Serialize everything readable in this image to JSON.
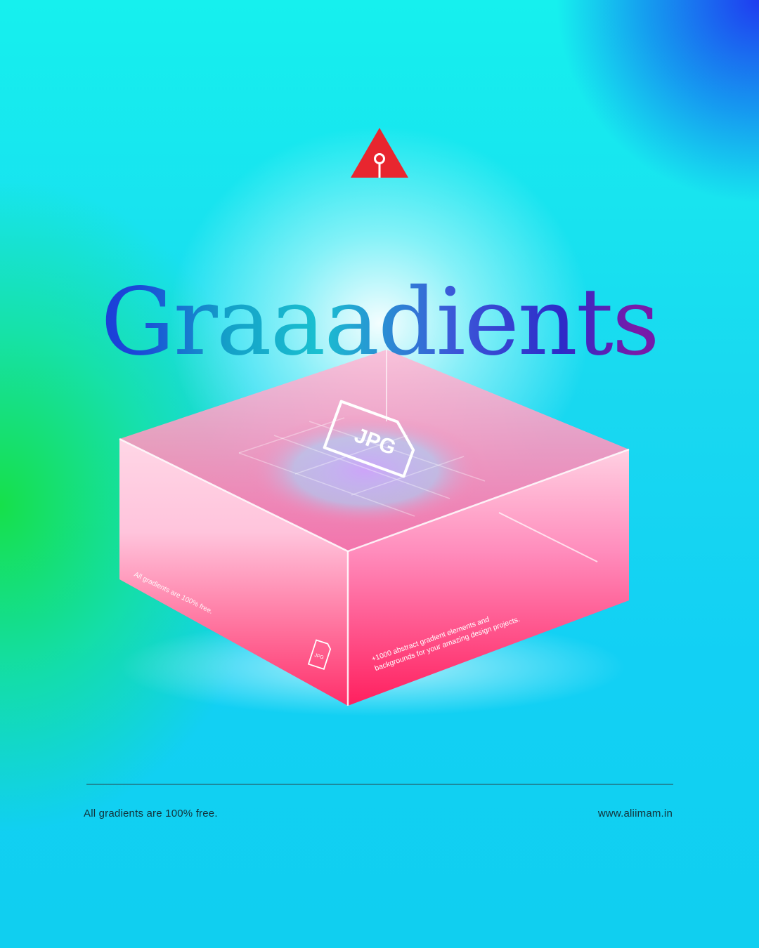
{
  "brand": {
    "logo_icon": "triangle-keyhole-icon",
    "logo_color": "#e8262f"
  },
  "headline": "Graaadients",
  "box": {
    "top_file_icon_label": "JPG",
    "side_file_icon_label": "JPG",
    "left_side_text": "All gradients are 100% free.",
    "right_side_text_line1": "+1000 abstract gradient elements and",
    "right_side_text_line2": "backgrounds for your amazing design projects."
  },
  "footer": {
    "left_text": "All gradients are 100% free.",
    "right_text": "www.aliimam.in"
  },
  "colors": {
    "box_pink": "#ff2e8a",
    "box_red": "#ff3a5a",
    "title_blue": "#1d1fd8"
  }
}
